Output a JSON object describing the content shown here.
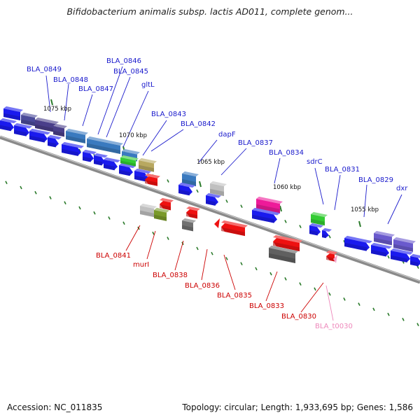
{
  "title": "Bifidobacterium animalis subsp. lactis AD011, complete genom...",
  "footer": {
    "accession": "Accession: NC_011835",
    "summary": "Topology: circular; Length: 1,933,695 bp; Genes: 1,586"
  },
  "colors": {
    "cds_blue": "#1a1aee",
    "label_blue": "#1a1acc",
    "label_red": "#cc0000",
    "label_pink": "#ee88bb",
    "backbone": "#8a8a8a",
    "tick_green": "#2a7a2a"
  },
  "diagram": {
    "tick_labels": [
      "1075 kbp",
      "1070 kbp",
      "1065 kbp",
      "1060 kbp",
      "1055 kbp"
    ],
    "top_labels": [
      "BLA_0849",
      "BLA_0848",
      "BLA_0847",
      "BLA_0846",
      "BLA_0845",
      "gltL",
      "BLA_0843",
      "BLA_0842",
      "dapF",
      "BLA_0837",
      "BLA_0834",
      "sdrC",
      "BLA_0831",
      "BLA_0829",
      "dxr"
    ],
    "bottom_labels": [
      "BLA_0841",
      "murI",
      "BLA_0838",
      "BLA_0836",
      "BLA_0835",
      "BLA_0833",
      "BLA_0830",
      "BLA_t0030"
    ]
  }
}
